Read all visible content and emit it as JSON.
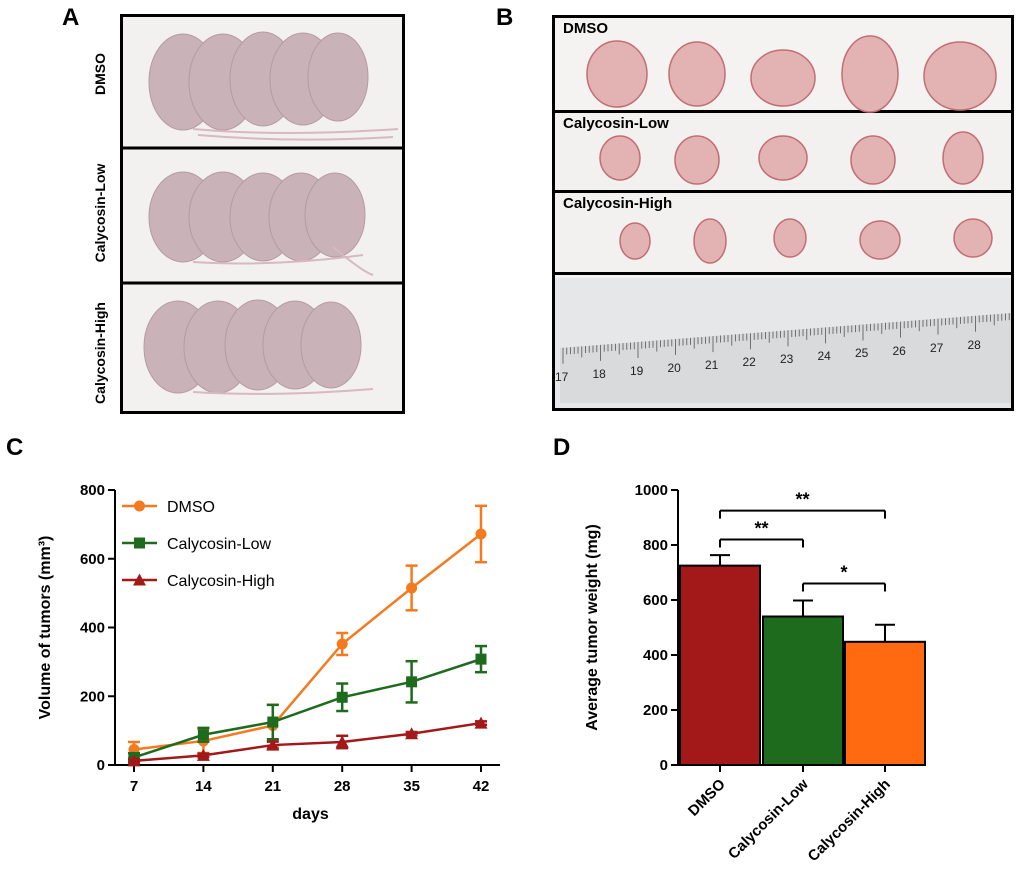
{
  "panels": {
    "A": {
      "letter": "A",
      "rows": [
        "DMSO",
        "Calycosin-Low",
        "Calycosin-High"
      ]
    },
    "B": {
      "letter": "B",
      "rows": [
        "DMSO",
        "Calycosin-Low",
        "Calycosin-High"
      ],
      "ruler_labels": [
        "17",
        "18",
        "19",
        "20",
        "21",
        "22",
        "23",
        "24",
        "25",
        "26",
        "27",
        "28"
      ]
    },
    "C": {
      "letter": "C"
    },
    "D": {
      "letter": "D"
    }
  },
  "chart_data": [
    {
      "type": "line",
      "panel": "C",
      "xlabel": "days",
      "ylabel": "Volume of tumors (mm³)",
      "x": [
        7,
        14,
        21,
        28,
        35,
        42
      ],
      "ylim": [
        0,
        800
      ],
      "yticks": [
        0,
        200,
        400,
        600,
        800
      ],
      "legend_placement": "top-left",
      "series": [
        {
          "name": "DMSO",
          "color": "#f47a20",
          "marker": "circle",
          "values": [
            45,
            70,
            115,
            352,
            515,
            672
          ],
          "errors": [
            22,
            35,
            60,
            32,
            65,
            82
          ]
        },
        {
          "name": "Calycosin-Low",
          "color": "#1e6b1e",
          "marker": "square",
          "values": [
            22,
            88,
            125,
            197,
            242,
            308
          ],
          "errors": [
            12,
            20,
            50,
            40,
            60,
            38
          ]
        },
        {
          "name": "Calycosin-High",
          "color": "#a31818",
          "marker": "triangle",
          "values": [
            12,
            28,
            58,
            67,
            91,
            122
          ],
          "errors": [
            5,
            5,
            10,
            18,
            5,
            5
          ]
        }
      ]
    },
    {
      "type": "bar",
      "panel": "D",
      "ylabel": "Average tumor weight (mg)",
      "categories": [
        "DMSO",
        "Calycosin-Low",
        "Calycosin-High"
      ],
      "values": [
        725,
        540,
        448
      ],
      "errors": [
        38,
        58,
        62
      ],
      "colors": [
        "#a31818",
        "#1e6b1e",
        "#ff6a10"
      ],
      "ylim": [
        0,
        1000
      ],
      "yticks": [
        0,
        200,
        400,
        600,
        800,
        1000
      ],
      "significance": [
        {
          "from": 0,
          "to": 2,
          "label": "**",
          "level": 925
        },
        {
          "from": 0,
          "to": 1,
          "label": "**",
          "level": 820
        },
        {
          "from": 1,
          "to": 2,
          "label": "*",
          "level": 660
        }
      ]
    }
  ]
}
